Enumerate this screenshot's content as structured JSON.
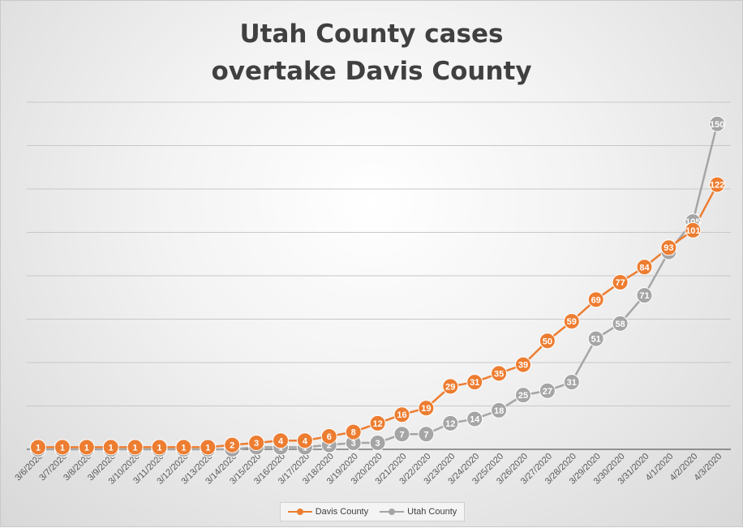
{
  "chart_data": {
    "type": "line",
    "title_lines": [
      "Utah County cases",
      "overtake Davis County"
    ],
    "categories": [
      "3/6/2020",
      "3/7/2020",
      "3/8/2020",
      "3/9/2020",
      "3/10/2020",
      "3/11/2020",
      "3/12/2020",
      "3/13/2020",
      "3/14/2020",
      "3/15/2020",
      "3/16/2020",
      "3/17/2020",
      "3/18/2020",
      "3/19/2020",
      "3/20/2020",
      "3/21/2020",
      "3/22/2020",
      "3/23/2020",
      "3/24/2020",
      "3/25/2020",
      "3/26/2020",
      "3/27/2020",
      "3/28/2020",
      "3/29/2020",
      "3/30/2020",
      "3/31/2020",
      "4/1/2020",
      "4/2/2020",
      "4/3/2020"
    ],
    "series": [
      {
        "name": "Davis County",
        "color": "#ED7D31",
        "values": [
          1,
          1,
          1,
          1,
          1,
          1,
          1,
          1,
          2,
          3,
          4,
          4,
          6,
          8,
          12,
          16,
          19,
          29,
          31,
          35,
          39,
          50,
          59,
          69,
          77,
          84,
          93,
          101,
          122
        ]
      },
      {
        "name": "Utah County",
        "color": "#A5A5A5",
        "values": [
          0,
          0,
          0,
          0,
          0,
          0,
          0,
          0,
          0,
          1,
          1,
          1,
          2,
          3,
          3,
          7,
          7,
          12,
          14,
          18,
          25,
          27,
          31,
          51,
          58,
          71,
          91,
          105,
          150
        ]
      }
    ],
    "ylim": [
      0,
      160
    ],
    "y_gridline_step": 20,
    "grid": true,
    "legend_position": "bottom"
  }
}
